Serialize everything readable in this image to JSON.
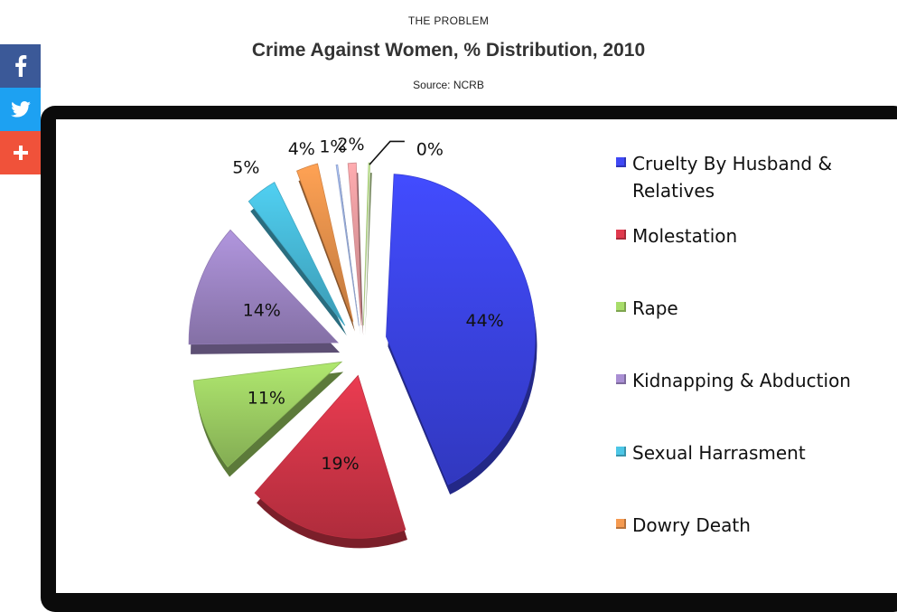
{
  "header": {
    "kicker": "THE PROBLEM",
    "title": "Crime Against Women, % Distribution, 2010",
    "source": "Source: NCRB"
  },
  "share": {
    "facebook": {
      "icon": "facebook-icon",
      "color": "#3b5998"
    },
    "twitter": {
      "icon": "twitter-icon",
      "color": "#1da1f2"
    },
    "more": {
      "icon": "plus-icon",
      "color": "#f0523a"
    }
  },
  "chart_data": {
    "type": "pie",
    "style": "3d exploded",
    "legend_position": "right",
    "slices": [
      {
        "name": "Cruelty By Husband & Relatives",
        "value": 44,
        "label": "44%",
        "color": "#3f48f5"
      },
      {
        "name": "Molestation",
        "value": 19,
        "label": "19%",
        "color": "#e0394d"
      },
      {
        "name": "Rape",
        "value": 11,
        "label": "11%",
        "color": "#a8dd6a"
      },
      {
        "name": "Kidnapping & Abduction",
        "value": 14,
        "label": "14%",
        "color": "#a98fd3"
      },
      {
        "name": "Sexual Harrasment",
        "value": 5,
        "label": "5%",
        "color": "#4cc6e6"
      },
      {
        "name": "Dowry Death",
        "value": 4,
        "label": "4%",
        "color": "#f59a50"
      },
      {
        "name": "",
        "value": 1,
        "label": "1%",
        "color": "#a7bdf0"
      },
      {
        "name": "",
        "value": 2,
        "label": "2%",
        "color": "#f3a4a8"
      },
      {
        "name": "",
        "value": 0,
        "label": "0%",
        "color": "#c6ea98"
      }
    ]
  }
}
